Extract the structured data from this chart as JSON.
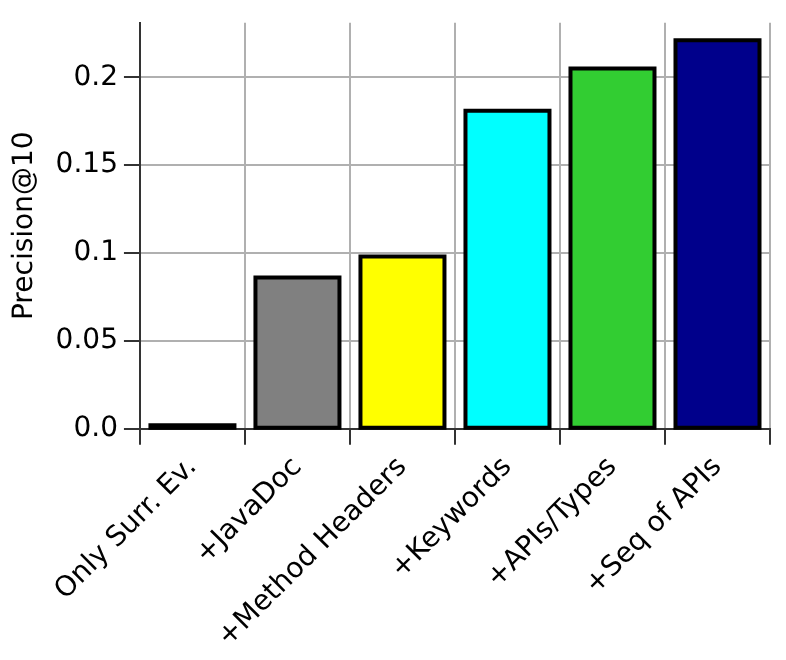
{
  "chart_data": {
    "type": "bar",
    "ylabel": "Precision@10",
    "categories": [
      "Only Surr. Ev.",
      "+JavaDoc",
      "+Method Headers",
      "+Keywords",
      "+APIs/Types",
      "+Seq of APIs"
    ],
    "values": [
      0.002,
      0.086,
      0.098,
      0.181,
      0.205,
      0.221
    ],
    "colors": [
      "#1a1a1a",
      "#808080",
      "#ffff00",
      "#00ffff",
      "#32cd32",
      "#00008b"
    ],
    "ylim": [
      0,
      0.231
    ],
    "yticks": [
      {
        "value": 0,
        "label": "0.0"
      },
      0.05,
      {
        "value": 0.1,
        "label": "0.1"
      },
      0.15,
      {
        "value": 0.2,
        "label": "0.2"
      }
    ],
    "grid": true
  }
}
